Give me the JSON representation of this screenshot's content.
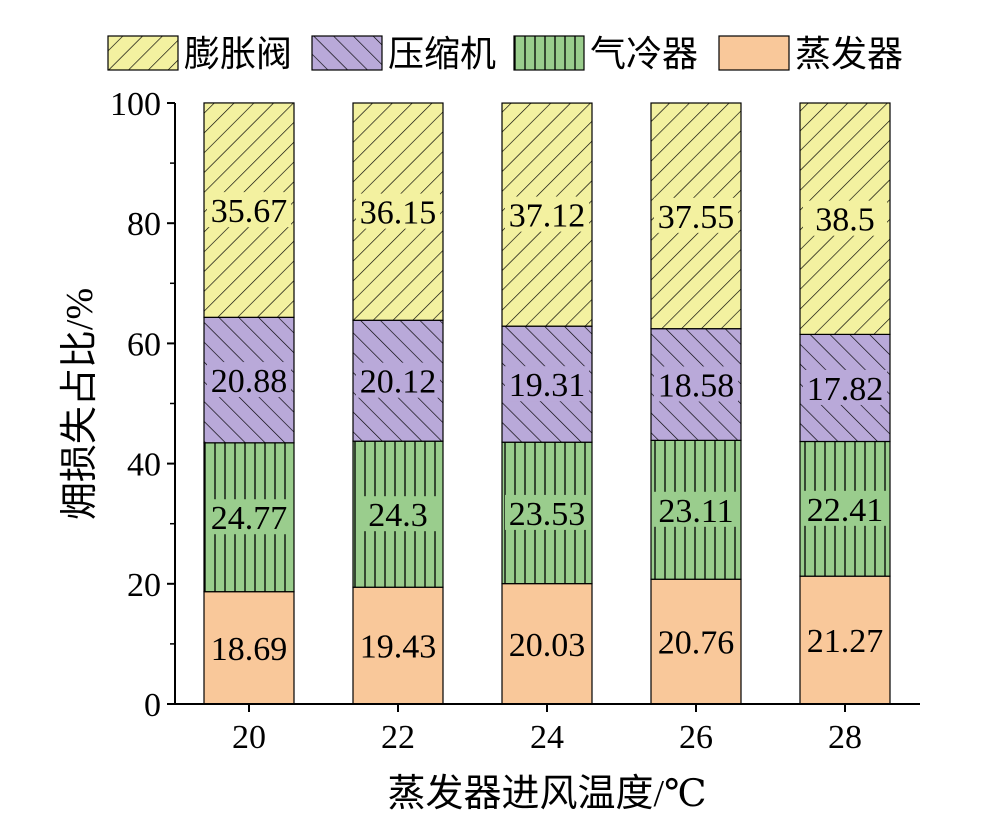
{
  "chart_data": {
    "type": "bar",
    "stacked": true,
    "xlabel": "蒸发器进风温度/℃",
    "ylabel": "㶲损失占比/%",
    "ylim": [
      0,
      100
    ],
    "yticks": [
      "0",
      "20",
      "40",
      "60",
      "80",
      "100"
    ],
    "categories": [
      "20",
      "22",
      "24",
      "26",
      "28"
    ],
    "legend_position": "top",
    "series": [
      {
        "name": "蒸发器",
        "values": [
          18.69,
          19.43,
          20.03,
          20.76,
          21.27
        ],
        "labels": [
          "18.69",
          "19.43",
          "20.03",
          "20.76",
          "21.27"
        ],
        "color": "#F9C89A",
        "hatch": "none"
      },
      {
        "name": "气冷器",
        "values": [
          24.77,
          24.3,
          23.53,
          23.11,
          22.41
        ],
        "labels": [
          "24.77",
          "24.3",
          "23.53",
          "23.11",
          "22.41"
        ],
        "color": "#9ACD8D",
        "hatch": "vertical"
      },
      {
        "name": "压缩机",
        "values": [
          20.88,
          20.12,
          19.31,
          18.58,
          17.82
        ],
        "labels": [
          "20.88",
          "20.12",
          "19.31",
          "18.58",
          "17.82"
        ],
        "color": "#B9A9D9",
        "hatch": "backslash"
      },
      {
        "name": "膨胀阀",
        "values": [
          35.67,
          36.15,
          37.12,
          37.55,
          38.5
        ],
        "labels": [
          "35.67",
          "36.15",
          "37.12",
          "37.55",
          "38.5"
        ],
        "color": "#F3F1A0",
        "hatch": "slash"
      }
    ],
    "legend_order": [
      "膨胀阀",
      "压缩机",
      "气冷器",
      "蒸发器"
    ]
  }
}
